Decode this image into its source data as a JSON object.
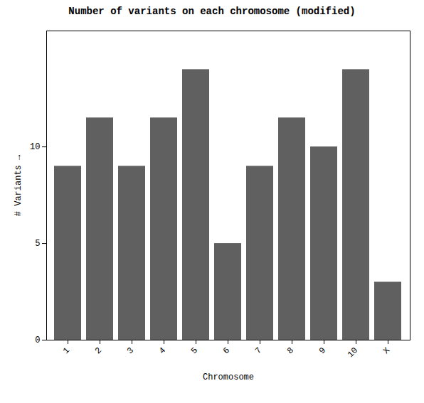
{
  "chart_data": {
    "type": "bar",
    "title": "Number of variants on each chromosome (modified)",
    "xlabel": "Chromosome",
    "ylabel": "# Variants",
    "categories": [
      "1",
      "2",
      "3",
      "4",
      "5",
      "6",
      "7",
      "8",
      "9",
      "10",
      "X"
    ],
    "values": [
      9,
      11.5,
      9,
      11.5,
      14,
      5,
      9,
      11.5,
      10,
      14,
      3
    ],
    "color": "#606060",
    "ylim": [
      0,
      16
    ],
    "yticks": [
      0,
      5,
      10
    ],
    "grid": false
  }
}
